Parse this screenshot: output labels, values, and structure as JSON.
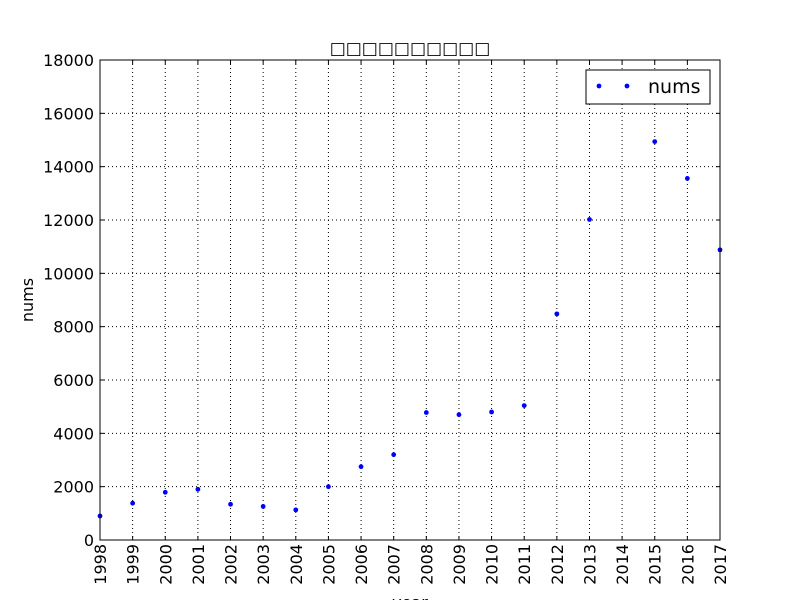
{
  "chart_data": {
    "type": "scatter",
    "title": "□□□□□□□□□□",
    "xlabel": "year",
    "ylabel": "nums",
    "xlim": [
      1998,
      2017
    ],
    "ylim": [
      0,
      18000
    ],
    "x_ticks": [
      "1998",
      "1999",
      "2000",
      "2001",
      "2002",
      "2003",
      "2004",
      "2005",
      "2006",
      "2007",
      "2008",
      "2009",
      "2010",
      "2011",
      "2012",
      "2013",
      "2014",
      "2015",
      "2016",
      "2017"
    ],
    "y_ticks": [
      "0",
      "2000",
      "4000",
      "6000",
      "8000",
      "10000",
      "12000",
      "14000",
      "16000",
      "18000"
    ],
    "grid": true,
    "legend_position": "top-right",
    "series": [
      {
        "name": "nums",
        "color": "#0000ff",
        "x": [
          1998,
          1999,
          2000,
          2001,
          2002,
          2003,
          2004,
          2005,
          2006,
          2007,
          2008,
          2009,
          2010,
          2011,
          2012,
          2013,
          2015,
          2016,
          2017
        ],
        "y": [
          900,
          1380,
          1790,
          1900,
          1340,
          1260,
          1130,
          2000,
          2750,
          3200,
          4780,
          4700,
          4800,
          5040,
          8480,
          12020,
          14940,
          13560,
          10880
        ]
      }
    ]
  }
}
